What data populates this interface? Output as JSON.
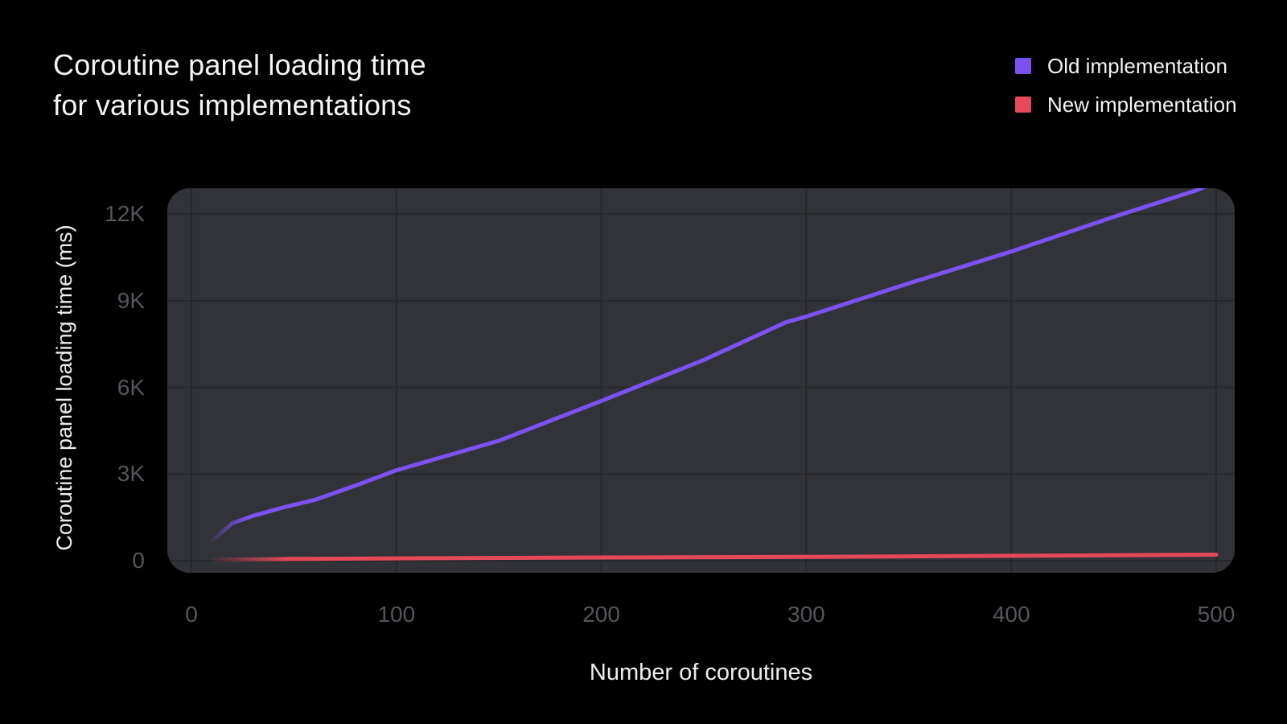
{
  "title": {
    "line1": "Coroutine panel loading time",
    "line2": "for various implementations"
  },
  "chart_data": {
    "type": "line",
    "title": "Coroutine panel loading time for various implementations",
    "xlabel": "Number of coroutines",
    "ylabel": "Coroutine panel loading time (ms)",
    "xlim": [
      0,
      500
    ],
    "ylim": [
      0,
      12000
    ],
    "x_ticks": [
      0,
      100,
      200,
      300,
      400,
      500
    ],
    "y_ticks": [
      {
        "value": 0,
        "label": "0"
      },
      {
        "value": 3000,
        "label": "3K"
      },
      {
        "value": 6000,
        "label": "6K"
      },
      {
        "value": 9000,
        "label": "9K"
      },
      {
        "value": 12000,
        "label": "12K"
      }
    ],
    "grid": true,
    "legend_position": "top-right",
    "series": [
      {
        "name": "Old implementation",
        "color": "#7C52F5",
        "x": [
          10,
          20,
          30,
          45,
          60,
          80,
          100,
          150,
          200,
          250,
          290,
          300,
          350,
          400,
          450,
          490,
          500
        ],
        "y": [
          700,
          1300,
          1550,
          1850,
          2100,
          2600,
          3130,
          4150,
          5530,
          6950,
          8250,
          8450,
          9600,
          10700,
          11900,
          12810,
          13100
        ]
      },
      {
        "name": "New implementation",
        "color": "#E4495A",
        "x": [
          10,
          50,
          100,
          200,
          300,
          400,
          500
        ],
        "y": [
          30,
          60,
          80,
          110,
          130,
          170,
          210
        ]
      }
    ]
  },
  "colors": {
    "background": "#000000",
    "panel": "#323338",
    "gridline": "#27282C",
    "tick_label": "#55555C",
    "text": "#F2F2F3"
  }
}
